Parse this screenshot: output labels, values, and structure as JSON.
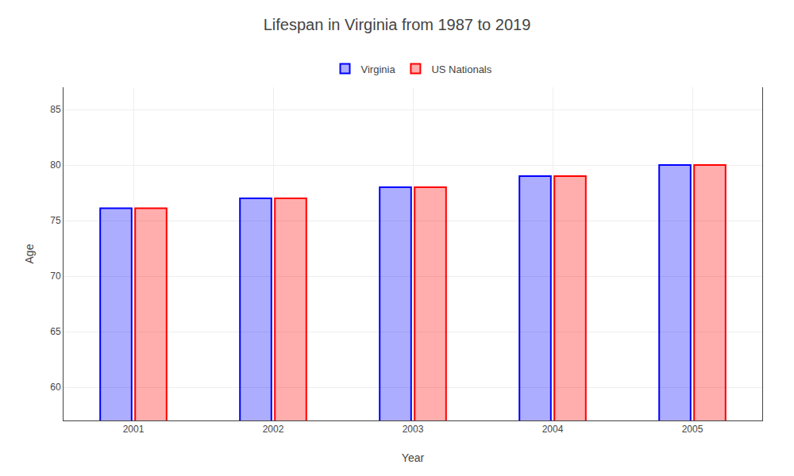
{
  "chart_data": {
    "type": "bar",
    "title": "Lifespan in Virginia from 1987 to 2019",
    "xlabel": "Year",
    "ylabel": "Age",
    "categories": [
      "2001",
      "2002",
      "2003",
      "2004",
      "2005"
    ],
    "series": [
      {
        "name": "Virginia",
        "color": "#0000ff",
        "values": [
          76.1,
          77.0,
          78.0,
          79.0,
          80.0
        ]
      },
      {
        "name": "US Nationals",
        "color": "#ff0000",
        "values": [
          76.1,
          77.0,
          78.0,
          79.0,
          80.0
        ]
      }
    ],
    "ylim": [
      57,
      87
    ],
    "yticks": [
      60,
      65,
      70,
      75,
      80,
      85
    ],
    "grid": true,
    "legend": "top"
  }
}
